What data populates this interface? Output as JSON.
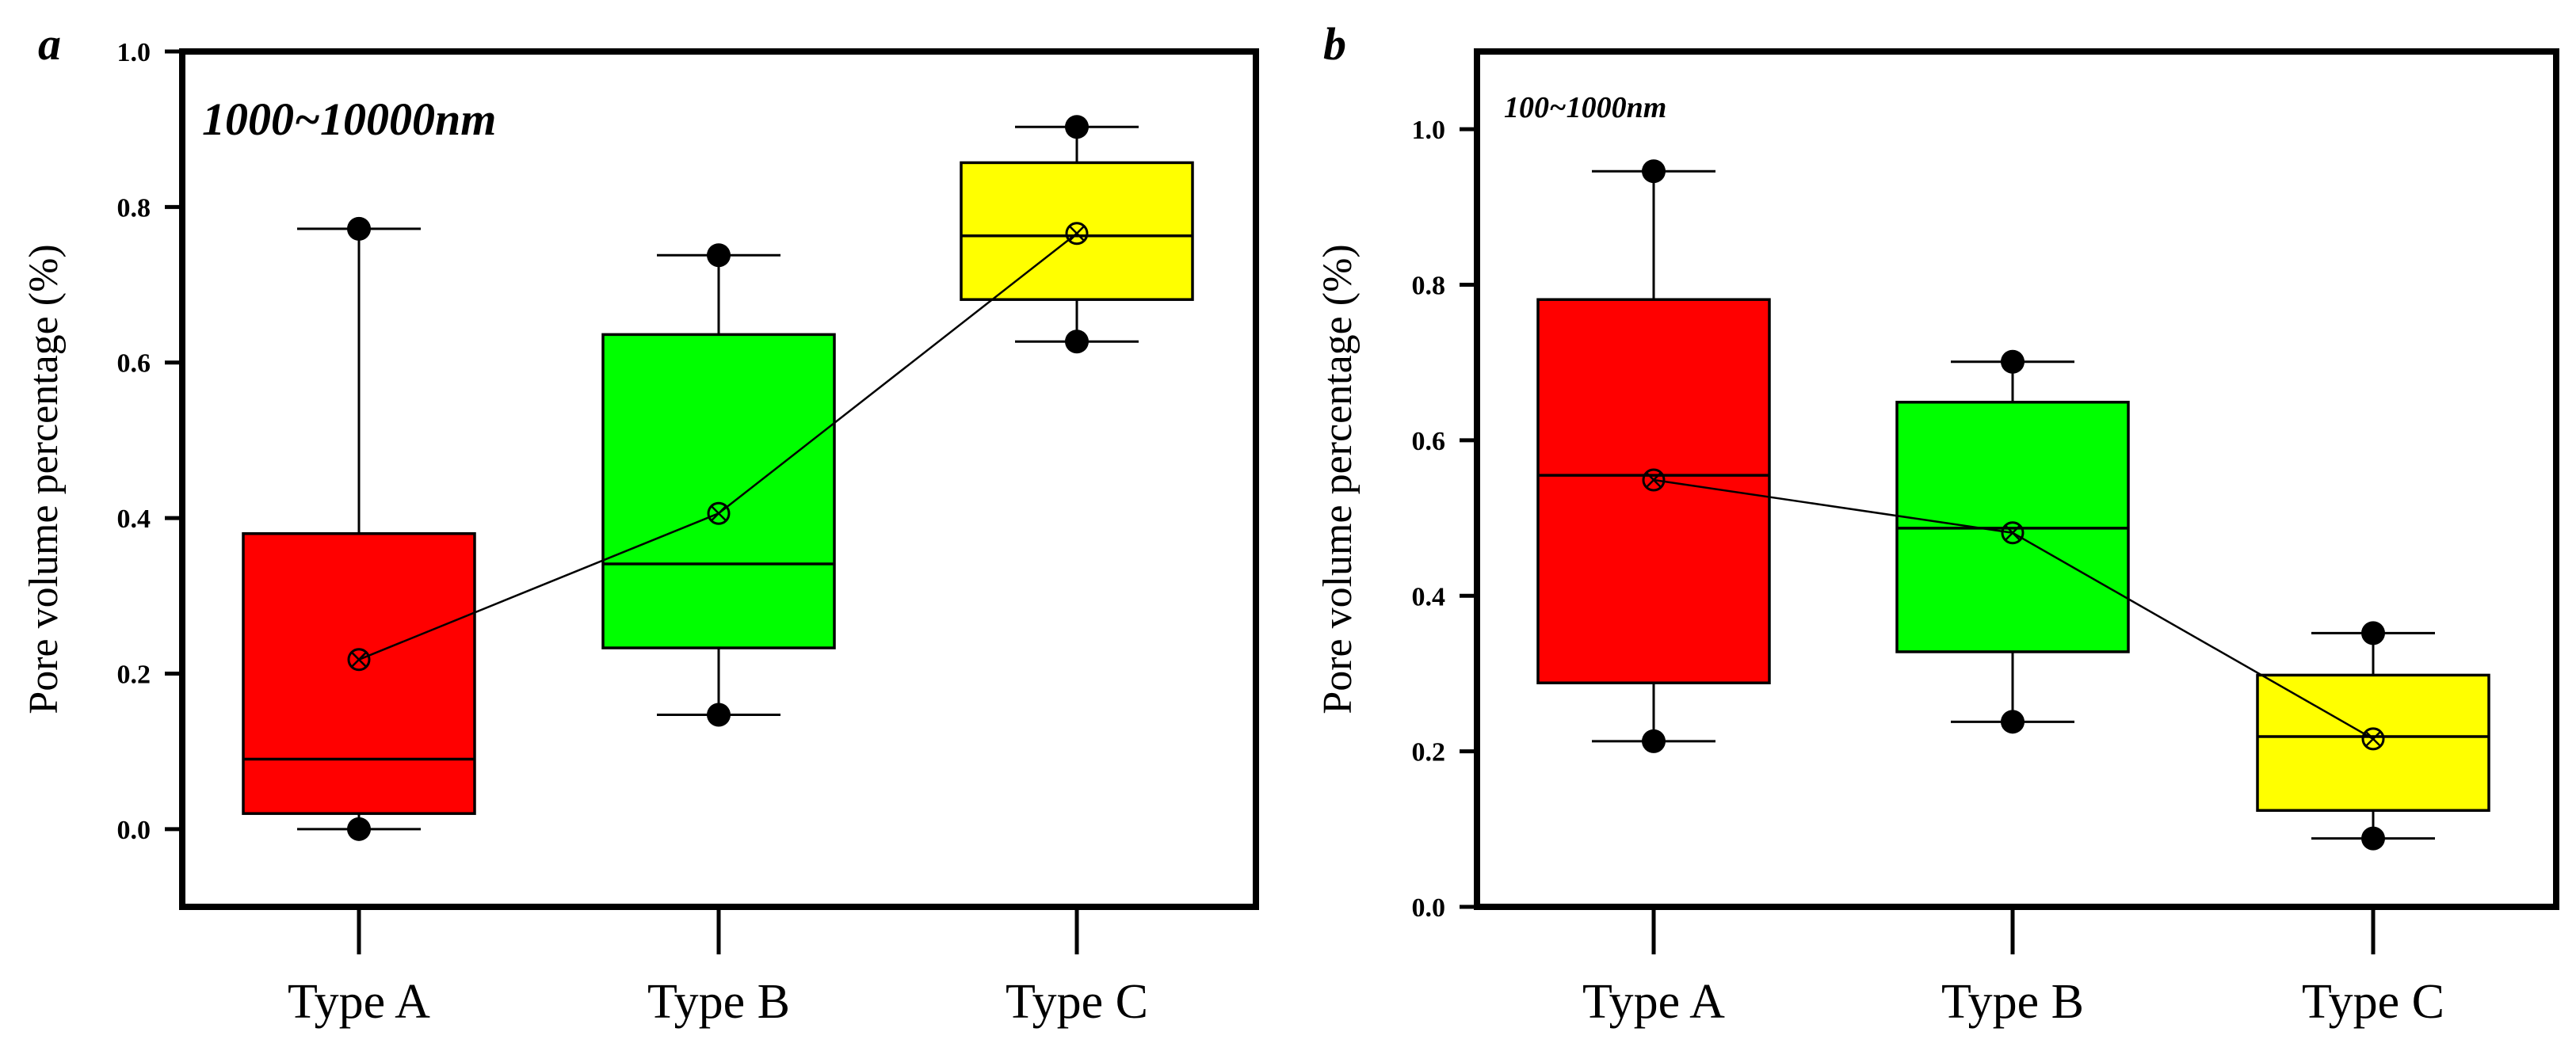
{
  "chart_data": [
    {
      "type": "box",
      "panel_label": "a",
      "annotation": "1000~10000nm",
      "ylabel": "Pore volume percentage (%)",
      "categories": [
        "Type A",
        "Type B",
        "Type C"
      ],
      "ylim": [
        -0.1,
        1.0
      ],
      "yticks": [
        0.0,
        0.2,
        0.4,
        0.6,
        0.8,
        1.0
      ],
      "ytick_labels": [
        "0.0",
        "0.2",
        "0.4",
        "0.6",
        "0.8",
        "1.0"
      ],
      "colors": [
        "#ff0000",
        "#00ff00",
        "#ffff00"
      ],
      "boxes": [
        {
          "q1": 0.02,
          "median": 0.09,
          "q3": 0.38,
          "whisker_low": 0.0,
          "whisker_high": 0.772,
          "min": 0.0,
          "max": 0.772,
          "mean": 0.218
        },
        {
          "q1": 0.233,
          "median": 0.341,
          "q3": 0.636,
          "whisker_low": 0.147,
          "whisker_high": 0.738,
          "min": 0.147,
          "max": 0.738,
          "mean": 0.406
        },
        {
          "q1": 0.681,
          "median": 0.763,
          "q3": 0.857,
          "whisker_low": 0.627,
          "whisker_high": 0.903,
          "min": 0.627,
          "max": 0.903,
          "mean": 0.766
        }
      ],
      "grid": false,
      "legend": "none"
    },
    {
      "type": "box",
      "panel_label": "b",
      "annotation": "100~1000nm",
      "ylabel": "Pore volume percentage (%)",
      "categories": [
        "Type A",
        "Type B",
        "Type C"
      ],
      "ylim": [
        0.0,
        1.1
      ],
      "yticks": [
        0.0,
        0.2,
        0.4,
        0.6,
        0.8,
        1.0
      ],
      "ytick_labels": [
        "0.0",
        "0.2",
        "0.4",
        "0.6",
        "0.8",
        "1.0"
      ],
      "colors": [
        "#ff0000",
        "#00ff00",
        "#ffff00"
      ],
      "boxes": [
        {
          "q1": 0.288,
          "median": 0.555,
          "q3": 0.781,
          "whisker_low": 0.213,
          "whisker_high": 0.946,
          "min": 0.213,
          "max": 0.946,
          "mean": 0.549
        },
        {
          "q1": 0.328,
          "median": 0.487,
          "q3": 0.649,
          "whisker_low": 0.238,
          "whisker_high": 0.701,
          "min": 0.238,
          "max": 0.701,
          "mean": 0.481
        },
        {
          "q1": 0.124,
          "median": 0.219,
          "q3": 0.298,
          "whisker_low": 0.088,
          "whisker_high": 0.352,
          "min": 0.088,
          "max": 0.352,
          "mean": 0.216
        }
      ],
      "grid": false,
      "legend": "none"
    }
  ]
}
